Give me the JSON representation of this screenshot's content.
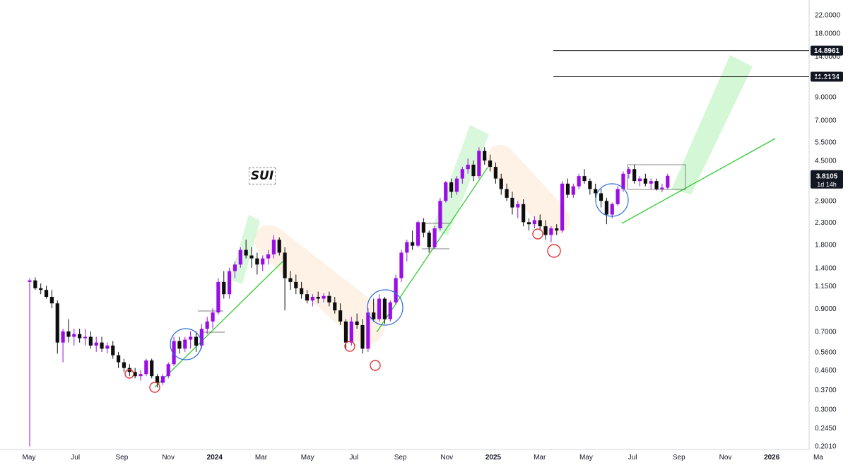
{
  "chart_data": {
    "type": "candlestick",
    "title": "SUI",
    "y_scale": "log",
    "ylim": [
      0.2,
      24
    ],
    "y_ticks": [
      "22.0000",
      "18.0000",
      "14.0000",
      "11.0000",
      "9.0000",
      "7.0000",
      "5.5000",
      "4.5000",
      "3.5000",
      "2.9000",
      "2.3000",
      "1.8000",
      "1.4000",
      "1.1500",
      "0.9000",
      "0.7000",
      "0.5600",
      "0.4600",
      "0.3700",
      "0.3000",
      "0.2450",
      "0.2010"
    ],
    "x_ticks": [
      {
        "label": "May",
        "year": false
      },
      {
        "label": "Jul",
        "year": false
      },
      {
        "label": "Sep",
        "year": false
      },
      {
        "label": "Nov",
        "year": false
      },
      {
        "label": "2024",
        "year": true
      },
      {
        "label": "Mar",
        "year": false
      },
      {
        "label": "May",
        "year": false
      },
      {
        "label": "Jul",
        "year": false
      },
      {
        "label": "Sep",
        "year": false
      },
      {
        "label": "Nov",
        "year": false
      },
      {
        "label": "2025",
        "year": true
      },
      {
        "label": "Mar",
        "year": false
      },
      {
        "label": "May",
        "year": false
      },
      {
        "label": "Jul",
        "year": false
      },
      {
        "label": "Sep",
        "year": false
      },
      {
        "label": "Nov",
        "year": false
      },
      {
        "label": "2026",
        "year": true
      },
      {
        "label": "Ma",
        "year": false
      }
    ],
    "price_levels": [
      {
        "value": 14.8961,
        "label": "14.8961"
      },
      {
        "value": 11.2134,
        "label": "11.2134"
      }
    ],
    "current_price": {
      "value": 3.8105,
      "label": "3.8105",
      "timer": "1d 14h"
    },
    "candles": [
      [
        1.2,
        1.25,
        0.2,
        1.22
      ],
      [
        1.22,
        1.26,
        1.1,
        1.12
      ],
      [
        1.12,
        1.18,
        1.05,
        1.1
      ],
      [
        1.1,
        1.15,
        1.0,
        1.02
      ],
      [
        1.02,
        1.1,
        0.9,
        0.95
      ],
      [
        0.95,
        0.98,
        0.55,
        0.62
      ],
      [
        0.62,
        0.72,
        0.5,
        0.7
      ],
      [
        0.7,
        0.8,
        0.62,
        0.66
      ],
      [
        0.66,
        0.72,
        0.6,
        0.68
      ],
      [
        0.68,
        0.72,
        0.62,
        0.65
      ],
      [
        0.65,
        0.72,
        0.6,
        0.66
      ],
      [
        0.66,
        0.7,
        0.58,
        0.6
      ],
      [
        0.6,
        0.66,
        0.56,
        0.62
      ],
      [
        0.62,
        0.66,
        0.56,
        0.58
      ],
      [
        0.58,
        0.62,
        0.55,
        0.6
      ],
      [
        0.6,
        0.63,
        0.52,
        0.54
      ],
      [
        0.54,
        0.56,
        0.47,
        0.5
      ],
      [
        0.5,
        0.52,
        0.45,
        0.47
      ],
      [
        0.47,
        0.49,
        0.43,
        0.45
      ],
      [
        0.45,
        0.47,
        0.42,
        0.43
      ],
      [
        0.43,
        0.46,
        0.41,
        0.44
      ],
      [
        0.44,
        0.52,
        0.43,
        0.51
      ],
      [
        0.51,
        0.52,
        0.42,
        0.43
      ],
      [
        0.43,
        0.44,
        0.38,
        0.4
      ],
      [
        0.4,
        0.44,
        0.39,
        0.43
      ],
      [
        0.43,
        0.5,
        0.42,
        0.49
      ],
      [
        0.49,
        0.66,
        0.48,
        0.63
      ],
      [
        0.63,
        0.66,
        0.55,
        0.58
      ],
      [
        0.58,
        0.66,
        0.56,
        0.64
      ],
      [
        0.64,
        0.7,
        0.58,
        0.66
      ],
      [
        0.66,
        0.7,
        0.56,
        0.6
      ],
      [
        0.6,
        0.76,
        0.58,
        0.72
      ],
      [
        0.72,
        0.82,
        0.68,
        0.78
      ],
      [
        0.78,
        0.9,
        0.72,
        0.86
      ],
      [
        0.86,
        1.25,
        0.84,
        1.2
      ],
      [
        1.2,
        1.35,
        1.0,
        1.05
      ],
      [
        1.05,
        1.4,
        1.0,
        1.35
      ],
      [
        1.35,
        1.5,
        1.25,
        1.45
      ],
      [
        1.45,
        1.75,
        1.4,
        1.7
      ],
      [
        1.7,
        1.9,
        1.55,
        1.6
      ],
      [
        1.6,
        1.75,
        1.4,
        1.55
      ],
      [
        1.55,
        1.65,
        1.3,
        1.45
      ],
      [
        1.45,
        1.6,
        1.35,
        1.55
      ],
      [
        1.55,
        1.7,
        1.45,
        1.62
      ],
      [
        1.62,
        2.0,
        1.55,
        1.9
      ],
      [
        1.9,
        1.95,
        1.6,
        1.65
      ],
      [
        1.65,
        1.75,
        0.88,
        1.25
      ],
      [
        1.25,
        1.35,
        1.1,
        1.2
      ],
      [
        1.2,
        1.3,
        1.05,
        1.12
      ],
      [
        1.12,
        1.2,
        1.0,
        1.05
      ],
      [
        1.05,
        1.1,
        0.95,
        0.98
      ],
      [
        0.98,
        1.05,
        0.92,
        1.02
      ],
      [
        1.02,
        1.08,
        0.95,
        1.0
      ],
      [
        1.0,
        1.06,
        0.96,
        1.03
      ],
      [
        1.03,
        1.08,
        0.92,
        0.96
      ],
      [
        0.96,
        1.02,
        0.85,
        0.88
      ],
      [
        0.88,
        0.95,
        0.75,
        0.78
      ],
      [
        0.78,
        0.8,
        0.58,
        0.62
      ],
      [
        0.62,
        0.82,
        0.6,
        0.78
      ],
      [
        0.78,
        0.85,
        0.72,
        0.75
      ],
      [
        0.75,
        0.8,
        0.55,
        0.58
      ],
      [
        0.58,
        0.9,
        0.56,
        0.86
      ],
      [
        0.86,
        1.0,
        0.78,
        0.8
      ],
      [
        0.8,
        1.05,
        0.78,
        1.0
      ],
      [
        1.0,
        1.02,
        0.76,
        0.8
      ],
      [
        0.8,
        0.98,
        0.78,
        0.96
      ],
      [
        0.96,
        1.3,
        0.94,
        1.25
      ],
      [
        1.25,
        1.7,
        1.2,
        1.65
      ],
      [
        1.65,
        1.9,
        1.5,
        1.85
      ],
      [
        1.85,
        2.1,
        1.7,
        1.78
      ],
      [
        1.78,
        2.35,
        1.75,
        2.3
      ],
      [
        2.3,
        2.4,
        1.95,
        2.05
      ],
      [
        2.05,
        2.1,
        1.65,
        1.75
      ],
      [
        1.75,
        2.2,
        1.72,
        2.15
      ],
      [
        2.15,
        3.0,
        2.1,
        2.9
      ],
      [
        2.9,
        3.6,
        2.85,
        3.55
      ],
      [
        3.55,
        3.7,
        3.0,
        3.2
      ],
      [
        3.2,
        3.8,
        3.1,
        3.7
      ],
      [
        3.7,
        4.2,
        3.5,
        4.1
      ],
      [
        4.1,
        4.6,
        3.9,
        4.3
      ],
      [
        4.3,
        4.5,
        3.6,
        3.8
      ],
      [
        3.8,
        5.2,
        3.7,
        5.0
      ],
      [
        5.0,
        5.2,
        4.3,
        4.5
      ],
      [
        4.5,
        4.8,
        4.0,
        4.2
      ],
      [
        4.2,
        4.4,
        3.5,
        3.7
      ],
      [
        3.7,
        3.9,
        3.1,
        3.3
      ],
      [
        3.3,
        3.5,
        2.9,
        3.0
      ],
      [
        3.0,
        3.2,
        2.5,
        2.7
      ],
      [
        2.7,
        2.9,
        2.4,
        2.8
      ],
      [
        2.8,
        2.95,
        2.2,
        2.3
      ],
      [
        2.3,
        2.4,
        2.1,
        2.25
      ],
      [
        2.25,
        2.45,
        2.15,
        2.35
      ],
      [
        2.35,
        2.5,
        2.1,
        2.2
      ],
      [
        2.2,
        2.35,
        1.9,
        2.0
      ],
      [
        2.0,
        2.2,
        1.85,
        2.15
      ],
      [
        2.15,
        2.25,
        2.0,
        2.1
      ],
      [
        2.1,
        3.6,
        2.05,
        3.5
      ],
      [
        3.5,
        3.7,
        3.0,
        3.1
      ],
      [
        3.1,
        3.5,
        3.0,
        3.4
      ],
      [
        3.4,
        3.9,
        3.3,
        3.8
      ],
      [
        3.8,
        4.1,
        3.5,
        3.6
      ],
      [
        3.6,
        3.7,
        3.1,
        3.3
      ],
      [
        3.3,
        3.5,
        3.0,
        3.15
      ],
      [
        3.15,
        3.3,
        2.7,
        2.9
      ],
      [
        2.9,
        3.0,
        2.25,
        2.5
      ],
      [
        2.5,
        2.85,
        2.4,
        2.8
      ],
      [
        2.8,
        3.4,
        2.75,
        3.3
      ],
      [
        3.3,
        4.0,
        3.2,
        3.9
      ],
      [
        3.9,
        4.2,
        3.7,
        4.1
      ],
      [
        4.1,
        4.3,
        3.5,
        3.6
      ],
      [
        3.6,
        3.8,
        3.4,
        3.7
      ],
      [
        3.7,
        3.9,
        3.4,
        3.5
      ],
      [
        3.5,
        3.7,
        3.3,
        3.6
      ],
      [
        3.6,
        3.7,
        3.25,
        3.3
      ],
      [
        3.3,
        3.5,
        3.2,
        3.35
      ],
      [
        3.35,
        3.9,
        3.3,
        3.81
      ]
    ]
  }
}
